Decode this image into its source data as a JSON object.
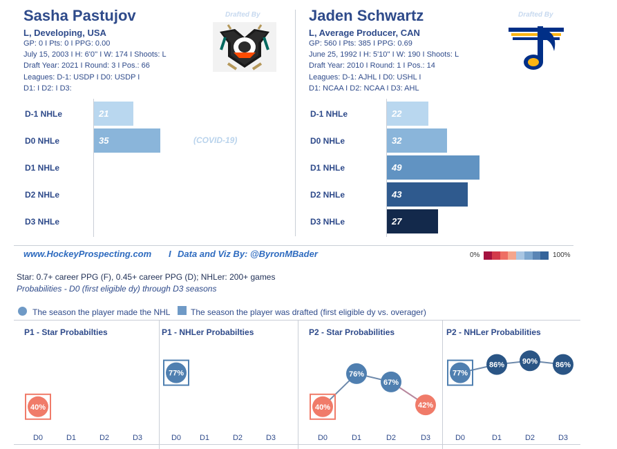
{
  "players": [
    {
      "name": "Sasha Pastujov",
      "line1": "L, Developing, USA",
      "line2": "GP: 0 I Pts: 0 I PPG: 0.00",
      "line3": "July 15, 2003 I H: 6'0'' I W: 174 I Shoots: L",
      "line4": "Draft Year: 2021 I Round: 3 I Pos.: 66",
      "line5": "Leagues: D-1: USDP I D0: USDP I",
      "line6": "D1:  I D2:  I D3:",
      "drafted_by": "Drafted By",
      "logo": "anaheim-ducks-logo"
    },
    {
      "name": "Jaden Schwartz",
      "line1": "L, Average Producer, CAN",
      "line2": "GP: 560 I Pts: 385 I PPG: 0.69",
      "line3": "June 25, 1992 I H: 5'10'' I W: 190 I Shoots: L",
      "line4": "Draft Year: 2010 I Round: 1 I Pos.: 14",
      "line5": "Leagues: D-1: AJHL I D0: USHL I",
      "line6": "D1: NCAA I D2: NCAA I D3: AHL",
      "drafted_by": "Drafted By",
      "logo": "st-louis-blues-logo"
    }
  ],
  "nhle_labels": [
    "D-1 NHLe",
    "D0 NHLe",
    "D1 NHLe",
    "D2 NHLe",
    "D3 NHLe"
  ],
  "covid_note": "(COVID-19)",
  "footer": {
    "site": "www.HockeyProspecting.com",
    "sep": "I",
    "credit": "Data and Viz By: @ByronMBader"
  },
  "scale_legend": {
    "min": "0%",
    "max": "100%",
    "colors": [
      "#a4123f",
      "#d33a4b",
      "#ee6e63",
      "#f5a58c",
      "#a9c6e3",
      "#7ea7cf",
      "#5a85b5",
      "#34639a"
    ]
  },
  "definitions": {
    "line1": "Star: 0.7+ career PPG (F), 0.45+ career PPG (D); NHLer: 200+ games",
    "line2": "Probabilities - D0 (first eligible dy) through D3 seasons"
  },
  "legend": {
    "circle_label": "The season the player made the NHL",
    "square_label": "The season the player was drafted (first eligible dy vs. overager)"
  },
  "panel_titles": [
    "P1 - Star Probabilties",
    "P1 - NHLer Probabilties",
    "P2 - Star Probabilities",
    "P2 - NHLer Probabilities"
  ],
  "x_ticks": [
    "D0",
    "D1",
    "D2",
    "D3"
  ],
  "chart_data": [
    {
      "type": "bar",
      "title": "Sasha Pastujov NHLe",
      "categories": [
        "D-1 NHLe",
        "D0 NHLe",
        "D1 NHLe",
        "D2 NHLe",
        "D3 NHLe"
      ],
      "values": [
        21,
        35,
        null,
        null,
        null
      ],
      "colors": [
        "#b9d7ef",
        "#8ab5da",
        null,
        null,
        null
      ]
    },
    {
      "type": "bar",
      "title": "Jaden Schwartz NHLe",
      "categories": [
        "D-1 NHLe",
        "D0 NHLe",
        "D1 NHLe",
        "D2 NHLe",
        "D3 NHLe"
      ],
      "values": [
        22,
        32,
        49,
        43,
        27
      ],
      "colors": [
        "#b9d7ef",
        "#8ab5da",
        "#6193c2",
        "#2f5a8e",
        "#13294b"
      ]
    },
    {
      "type": "line",
      "title": "P1 - Star Probabilties",
      "x": [
        "D0",
        "D1",
        "D2",
        "D3"
      ],
      "values": [
        40,
        null,
        null,
        null
      ],
      "labels": [
        "40%",
        null,
        null,
        null
      ],
      "colors": [
        "#f07b69",
        null,
        null,
        null
      ],
      "drafted_index": 0,
      "ylim": [
        0,
        100
      ]
    },
    {
      "type": "line",
      "title": "P1 - NHLer Probabilties",
      "x": [
        "D0",
        "D1",
        "D2",
        "D3"
      ],
      "values": [
        77,
        null,
        null,
        null
      ],
      "labels": [
        "77%",
        null,
        null,
        null
      ],
      "colors": [
        "#4f7fb0",
        null,
        null,
        null
      ],
      "drafted_index": 0,
      "ylim": [
        0,
        100
      ]
    },
    {
      "type": "line",
      "title": "P2 - Star Probabilities",
      "x": [
        "D0",
        "D1",
        "D2",
        "D3"
      ],
      "values": [
        40,
        76,
        67,
        42
      ],
      "labels": [
        "40%",
        "76%",
        "67%",
        "42%"
      ],
      "colors": [
        "#f07b69",
        "#4f7fb0",
        "#4f7fb0",
        "#f07b69"
      ],
      "drafted_index": 0,
      "nhl_index": 1,
      "ylim": [
        0,
        100
      ]
    },
    {
      "type": "line",
      "title": "P2 - NHLer Probabilities",
      "x": [
        "D0",
        "D1",
        "D2",
        "D3"
      ],
      "values": [
        77,
        86,
        90,
        86
      ],
      "labels": [
        "77%",
        "86%",
        "90%",
        "86%"
      ],
      "colors": [
        "#4f7fb0",
        "#2a5585",
        "#2a5585",
        "#2a5585"
      ],
      "drafted_index": 0,
      "nhl_index": 1,
      "ylim": [
        0,
        100
      ]
    }
  ]
}
